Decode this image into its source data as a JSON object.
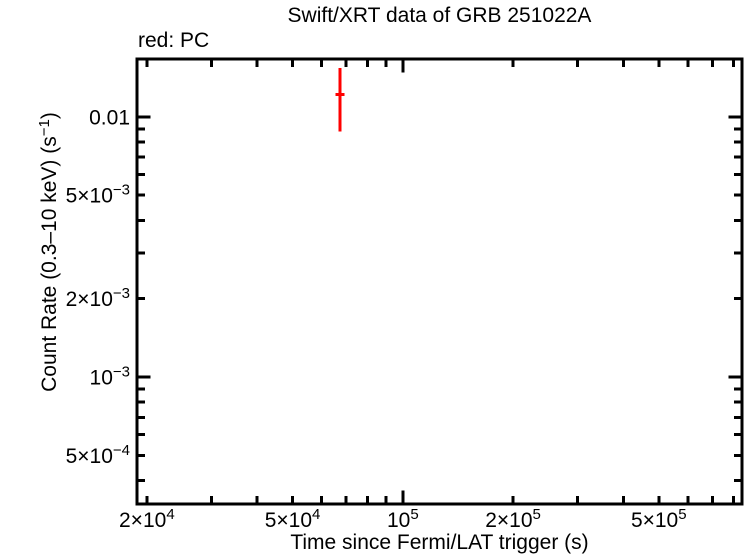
{
  "legend": {
    "mode_label": "red: PC",
    "modes": [
      {
        "name": "PC",
        "color": "#ff0000"
      }
    ]
  },
  "chart_data": {
    "type": "scatter",
    "title": "Swift/XRT data of GRB 251022A",
    "xlabel": "Time since Fermi/LAT trigger (s)",
    "ylabel": "Count Rate (0.3–10 keV) (s⁻¹)",
    "ylabel_parts": [
      {
        "t": "Count Rate (0.3–10 keV) (s"
      },
      {
        "t": "−1",
        "sup": true
      },
      {
        "t": ")"
      }
    ],
    "xscale": "log",
    "yscale": "log",
    "xlim": [
      18800,
      843800
    ],
    "ylim": [
      0.000325,
      0.0167
    ],
    "grid": false,
    "frame_color": "#000000",
    "x_ticks": [
      {
        "v": 20000,
        "label": "2×10^4"
      },
      {
        "v": 30000
      },
      {
        "v": 40000
      },
      {
        "v": 50000,
        "label": "5×10^4"
      },
      {
        "v": 60000
      },
      {
        "v": 70000
      },
      {
        "v": 80000
      },
      {
        "v": 90000
      },
      {
        "v": 100000,
        "label": "10^5",
        "major": true
      },
      {
        "v": 200000,
        "label": "2×10^5"
      },
      {
        "v": 300000
      },
      {
        "v": 400000
      },
      {
        "v": 500000,
        "label": "5×10^5"
      },
      {
        "v": 600000
      },
      {
        "v": 700000
      },
      {
        "v": 800000
      }
    ],
    "y_ticks": [
      {
        "v": 0.01,
        "label": "0.01",
        "major": true
      },
      {
        "v": 0.009
      },
      {
        "v": 0.008
      },
      {
        "v": 0.007
      },
      {
        "v": 0.006
      },
      {
        "v": 0.005,
        "label": "5×10^−3"
      },
      {
        "v": 0.004
      },
      {
        "v": 0.003
      },
      {
        "v": 0.002,
        "label": "2×10^−3"
      },
      {
        "v": 0.001,
        "label": "10^−3",
        "major": true
      },
      {
        "v": 0.0009
      },
      {
        "v": 0.0008
      },
      {
        "v": 0.0007
      },
      {
        "v": 0.0006
      },
      {
        "v": 0.0005,
        "label": "5×10^−4"
      },
      {
        "v": 0.0004
      }
    ],
    "series": [
      {
        "name": "PC",
        "color": "#ff0000",
        "points": [
          {
            "t": 67300,
            "t_lo": 65500,
            "t_hi": 69200,
            "rate": 0.0122,
            "rate_lo": 0.0088,
            "rate_hi": 0.0154
          }
        ]
      }
    ]
  }
}
